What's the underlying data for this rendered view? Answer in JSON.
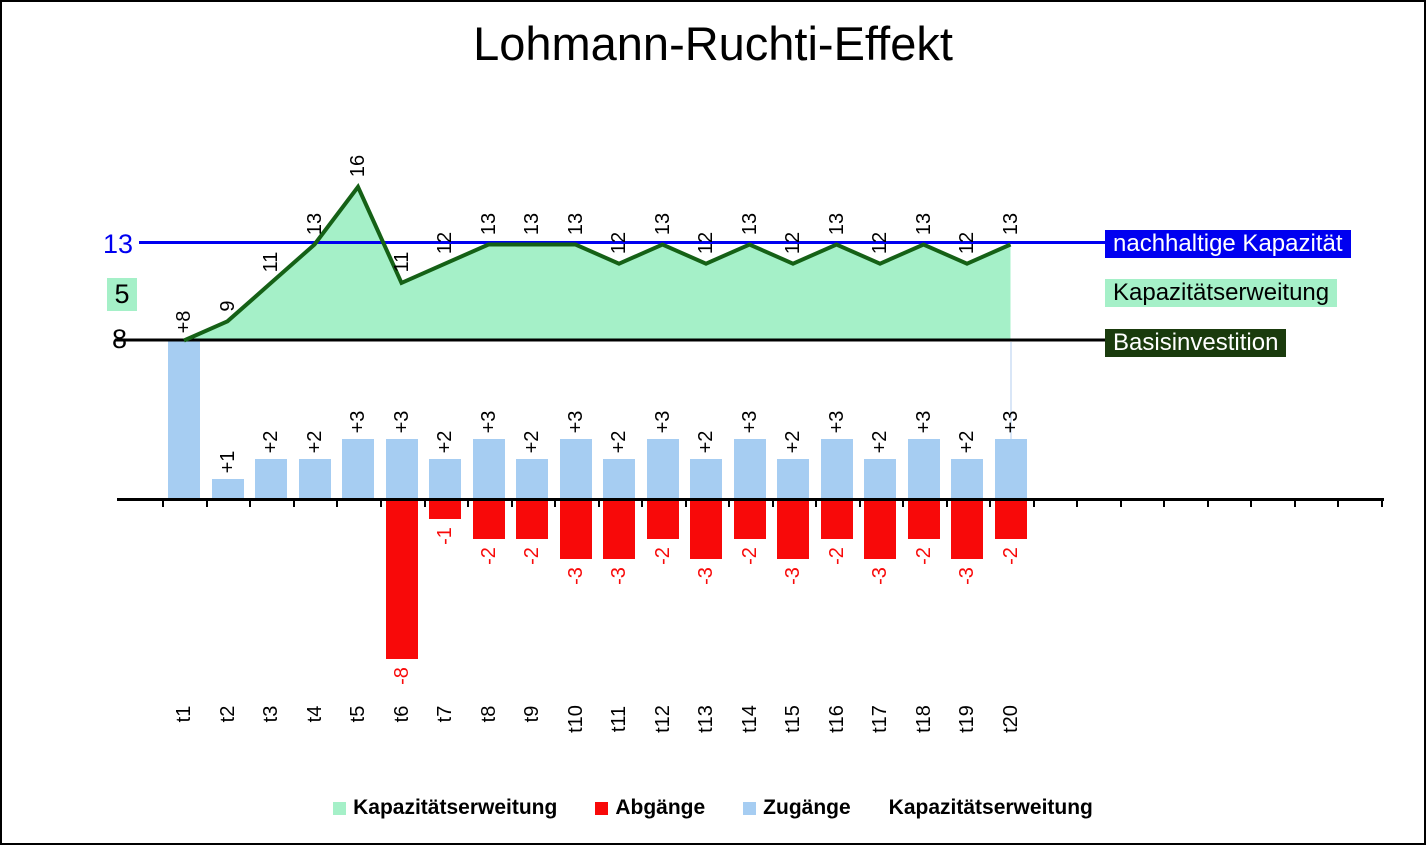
{
  "title": "Lohmann-Ruchti-Effekt",
  "chart_data": {
    "type": "combo-area-line-bar",
    "title": "Lohmann-Ruchti-Effekt",
    "categories": [
      "t1",
      "t2",
      "t3",
      "t4",
      "t5",
      "t6",
      "t7",
      "t8",
      "t9",
      "t10",
      "t11",
      "t12",
      "t13",
      "t14",
      "t15",
      "t16",
      "t17",
      "t18",
      "t19",
      "t20"
    ],
    "series": [
      {
        "name": "Kapazitätserweitung",
        "type": "area",
        "fill_color": "#A5F0C8",
        "line_color": "#156116",
        "values": [
          8,
          9,
          11,
          13,
          16,
          11,
          12,
          13,
          13,
          13,
          12,
          13,
          12,
          13,
          12,
          13,
          12,
          13,
          12,
          13
        ],
        "point_labels": [
          "",
          "9",
          "11",
          "13",
          "16",
          "11",
          "12",
          "13",
          "13",
          "13",
          "12",
          "13",
          "12",
          "13",
          "12",
          "13",
          "12",
          "13",
          "12",
          "13"
        ],
        "label_color": "#000000"
      },
      {
        "name": "Zugänge",
        "type": "bar",
        "color": "#A6CDF2",
        "values": [
          8,
          1,
          2,
          2,
          3,
          3,
          2,
          3,
          2,
          3,
          2,
          3,
          2,
          3,
          2,
          3,
          2,
          3,
          2,
          3
        ],
        "point_labels": [
          "+8",
          "+1",
          "+2",
          "+2",
          "+3",
          "+3",
          "+2",
          "+3",
          "+2",
          "+3",
          "+2",
          "+3",
          "+2",
          "+3",
          "+2",
          "+3",
          "+2",
          "+3",
          "+2",
          "+3"
        ],
        "label_color": "#000000"
      },
      {
        "name": "Abgänge",
        "type": "bar",
        "color": "#F80909",
        "values": [
          null,
          null,
          null,
          null,
          null,
          -8,
          -1,
          -2,
          -2,
          -3,
          -3,
          -2,
          -3,
          -2,
          -3,
          -2,
          -3,
          -2,
          -3,
          -2
        ],
        "point_labels": [
          "",
          "",
          "",
          "",
          "",
          "-8",
          "-1",
          "-2",
          "-2",
          "-3",
          "-3",
          "-2",
          "-3",
          "-2",
          "-3",
          "-2",
          "-3",
          "-2",
          "-3",
          "-2"
        ],
        "label_color": "#F80909"
      }
    ],
    "reference_lines": [
      {
        "name": "nachhaltige Kapazität",
        "value": 13,
        "axis_label": "13",
        "color": "#0000F0"
      },
      {
        "name": "Basisinvestition",
        "value": 8,
        "axis_label": "8",
        "color": "#000000"
      }
    ],
    "gap_annotation": {
      "text": "5",
      "bg_color": "#A5F0C8"
    },
    "side_labels": [
      {
        "text": "nachhaltige Kapazität",
        "bg": "#0000F0",
        "fg": "#FFFFFF"
      },
      {
        "text": "Kapazitätserweitung",
        "bg": "#A5F0C8",
        "fg": "#000000"
      },
      {
        "text": "Basisinvestition",
        "bg": "#1A3B0D",
        "fg": "#FFFFFF"
      }
    ],
    "legend": [
      {
        "label": "Kapazitätserweitung",
        "swatch": "#A5F0C8"
      },
      {
        "label": "Abgänge",
        "swatch": "#F80909"
      },
      {
        "label": "Zugänge",
        "swatch": "#A6CDF2"
      },
      {
        "label": "Kapazitätserweitung",
        "swatch": null
      }
    ],
    "axes": {
      "x_extra_ticks": true,
      "x_tick_count": 29,
      "grid": false
    }
  }
}
